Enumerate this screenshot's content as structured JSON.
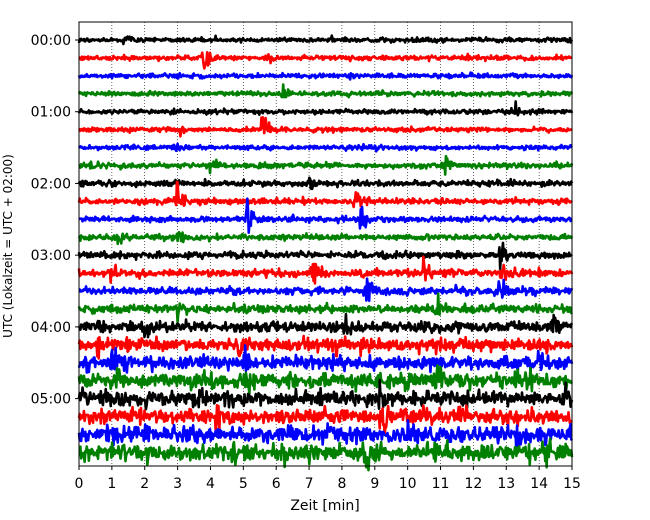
{
  "chart_data": {
    "type": "line",
    "title": "",
    "xlabel": "Zeit  [min]",
    "ylabel": "UTC (Lokalzeit = UTC + 02:00)",
    "xlim": [
      0,
      15
    ],
    "x_ticks": [
      "0",
      "1",
      "2",
      "3",
      "4",
      "5",
      "6",
      "7",
      "8",
      "9",
      "10",
      "11",
      "12",
      "13",
      "14",
      "15"
    ],
    "y_tick_labels": [
      "00:00",
      "01:00",
      "02:00",
      "03:00",
      "04:00",
      "05:00"
    ],
    "grid": "vertical dotted at each minute",
    "legend": "none",
    "trace_count": 24,
    "trace_interval_min": 15,
    "color_cycle": [
      "#000000",
      "#ff0000",
      "#0000ff",
      "#008000"
    ],
    "traces": [
      {
        "index": 0,
        "amplitude": 0.25,
        "events": [
          {
            "x": 1.4,
            "amp": 0.5
          }
        ]
      },
      {
        "index": 1,
        "amplitude": 0.25,
        "events": [
          {
            "x": 3.8,
            "amp": 0.9
          },
          {
            "x": 5.7,
            "amp": 0.6
          }
        ]
      },
      {
        "index": 2,
        "amplitude": 0.25,
        "events": []
      },
      {
        "index": 3,
        "amplitude": 0.25,
        "events": [
          {
            "x": 6.2,
            "amp": 0.7
          }
        ]
      },
      {
        "index": 4,
        "amplitude": 0.25,
        "events": [
          {
            "x": 13.2,
            "amp": 0.7
          }
        ]
      },
      {
        "index": 5,
        "amplitude": 0.25,
        "events": [
          {
            "x": 3.1,
            "amp": 0.8
          },
          {
            "x": 5.6,
            "amp": 1.6
          }
        ]
      },
      {
        "index": 6,
        "amplitude": 0.25,
        "events": [
          {
            "x": 3.0,
            "amp": 0.5
          }
        ]
      },
      {
        "index": 7,
        "amplitude": 0.3,
        "events": [
          {
            "x": 11.1,
            "amp": 2.2
          },
          {
            "x": 4.0,
            "amp": 0.6
          }
        ]
      },
      {
        "index": 8,
        "amplitude": 0.3,
        "events": [
          {
            "x": 7.0,
            "amp": 0.5
          }
        ]
      },
      {
        "index": 9,
        "amplitude": 0.3,
        "events": [
          {
            "x": 3.0,
            "amp": 1.6
          },
          {
            "x": 8.4,
            "amp": 1.4
          }
        ]
      },
      {
        "index": 10,
        "amplitude": 0.3,
        "events": [
          {
            "x": 5.1,
            "amp": 1.5
          },
          {
            "x": 8.6,
            "amp": 1.4
          }
        ]
      },
      {
        "index": 11,
        "amplitude": 0.3,
        "events": [
          {
            "x": 1.2,
            "amp": 0.6
          },
          {
            "x": 3.0,
            "amp": 0.6
          }
        ]
      },
      {
        "index": 12,
        "amplitude": 0.35,
        "events": [
          {
            "x": 12.8,
            "amp": 1.0
          }
        ]
      },
      {
        "index": 13,
        "amplitude": 0.4,
        "events": [
          {
            "x": 7.1,
            "amp": 1.1
          },
          {
            "x": 10.5,
            "amp": 1.3
          },
          {
            "x": 12.8,
            "amp": 1.7
          },
          {
            "x": 1.0,
            "amp": 0.8
          }
        ]
      },
      {
        "index": 14,
        "amplitude": 0.4,
        "events": [
          {
            "x": 8.7,
            "amp": 1.5
          },
          {
            "x": 12.8,
            "amp": 0.8
          }
        ]
      },
      {
        "index": 15,
        "amplitude": 0.45,
        "events": [
          {
            "x": 10.8,
            "amp": 1.0
          },
          {
            "x": 3.0,
            "amp": 0.6
          }
        ]
      },
      {
        "index": 16,
        "amplitude": 0.6,
        "events": [
          {
            "x": 0.5,
            "amp": 1.1
          },
          {
            "x": 2.0,
            "amp": 1.0
          },
          {
            "x": 8.1,
            "amp": 1.0
          },
          {
            "x": 14.4,
            "amp": 1.0
          }
        ]
      },
      {
        "index": 17,
        "amplitude": 0.7,
        "events": [
          {
            "x": 4.9,
            "amp": 1.6
          },
          {
            "x": 0.6,
            "amp": 1.0
          },
          {
            "x": 7.8,
            "amp": 0.9
          }
        ]
      },
      {
        "index": 18,
        "amplitude": 0.7,
        "events": [
          {
            "x": 1.0,
            "amp": 1.3
          },
          {
            "x": 5.0,
            "amp": 1.2
          },
          {
            "x": 14.0,
            "amp": 1.0
          }
        ]
      },
      {
        "index": 19,
        "amplitude": 0.8,
        "events": [
          {
            "x": 5.1,
            "amp": 1.8
          },
          {
            "x": 10.9,
            "amp": 1.4
          },
          {
            "x": 13.6,
            "amp": 1.3
          },
          {
            "x": 1.2,
            "amp": 0.9
          }
        ]
      },
      {
        "index": 20,
        "amplitude": 0.8,
        "events": [
          {
            "x": 3.6,
            "amp": 1.2
          },
          {
            "x": 9.1,
            "amp": 1.3
          },
          {
            "x": 14.7,
            "amp": 1.2
          }
        ]
      },
      {
        "index": 21,
        "amplitude": 0.8,
        "events": [
          {
            "x": 9.2,
            "amp": 1.8
          },
          {
            "x": 4.2,
            "amp": 1.1
          },
          {
            "x": 11.5,
            "amp": 1.0
          }
        ]
      },
      {
        "index": 22,
        "amplitude": 0.9,
        "events": [
          {
            "x": 3.3,
            "amp": 1.6
          },
          {
            "x": 10.0,
            "amp": 1.5
          },
          {
            "x": 13.3,
            "amp": 1.1
          },
          {
            "x": 0.9,
            "amp": 1.0
          }
        ]
      },
      {
        "index": 23,
        "amplitude": 0.9,
        "events": [
          {
            "x": 8.7,
            "amp": 1.6
          },
          {
            "x": 14.2,
            "amp": 1.2
          },
          {
            "x": 4.7,
            "amp": 1.0
          }
        ]
      }
    ]
  }
}
